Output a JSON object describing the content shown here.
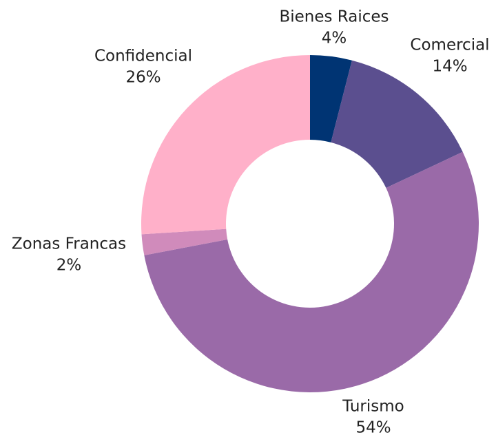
{
  "chart_data": {
    "type": "donut",
    "categories": [
      "Bienes Raices",
      "Comercial",
      "Turismo",
      "Zonas Francas",
      "Confidencial"
    ],
    "values": [
      4,
      14,
      54,
      2,
      26
    ],
    "value_labels": [
      "4%",
      "14%",
      "54%",
      "2%",
      "26%"
    ],
    "colors": [
      "#003473",
      "#5b4f8f",
      "#9a6aa8",
      "#d08bbb",
      "#ffb0c9"
    ]
  }
}
